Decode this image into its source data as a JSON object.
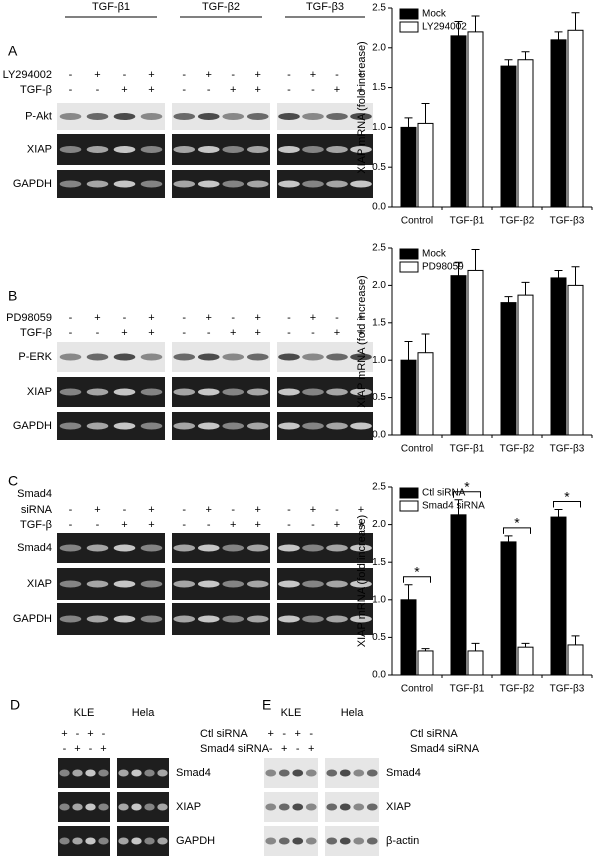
{
  "figure": {
    "header": [
      "TGF-β1",
      "TGF-β2",
      "TGF-β3"
    ],
    "panels": [
      {
        "letter": "A",
        "treatments": [
          {
            "label": [
              "LY294002"
            ],
            "signs": [
              "-",
              "+",
              "-",
              "+",
              "-",
              "+",
              "-",
              "+",
              "-",
              "+",
              "-",
              "+"
            ]
          },
          {
            "label": [
              "TGF-β"
            ],
            "signs": [
              "-",
              "-",
              "+",
              "+",
              "-",
              "-",
              "+",
              "+",
              "-",
              "-",
              "+",
              "+"
            ]
          }
        ],
        "bands": [
          "P-Akt",
          "XIAP",
          "GAPDH"
        ],
        "blot_colors": [
          "#e6e6e6",
          "#1e1e1e",
          "#1e1e1e"
        ]
      },
      {
        "letter": "B",
        "treatments": [
          {
            "label": [
              "PD98059"
            ],
            "signs": [
              "-",
              "+",
              "-",
              "+",
              "-",
              "+",
              "-",
              "+",
              "-",
              "+",
              "-",
              "+"
            ]
          },
          {
            "label": [
              "TGF-β"
            ],
            "signs": [
              "-",
              "-",
              "+",
              "+",
              "-",
              "-",
              "+",
              "+",
              "-",
              "-",
              "+",
              "+"
            ]
          }
        ],
        "bands": [
          "P-ERK",
          "XIAP",
          "GAPDH"
        ],
        "blot_colors": [
          "#e6e6e6",
          "#1e1e1e",
          "#1e1e1e"
        ]
      },
      {
        "letter": "C",
        "treatments": [
          {
            "label": [
              "Smad4",
              "siRNA"
            ],
            "signs": [
              "-",
              "+",
              "-",
              "+",
              "-",
              "+",
              "-",
              "+",
              "-",
              "+",
              "-",
              "+"
            ]
          },
          {
            "label": [
              "TGF-β"
            ],
            "signs": [
              "-",
              "-",
              "+",
              "+",
              "-",
              "-",
              "+",
              "+",
              "-",
              "-",
              "+",
              "+"
            ]
          }
        ],
        "bands": [
          "Smad4",
          "XIAP",
          "GAPDH"
        ],
        "blot_colors": [
          "#1e1e1e",
          "#1e1e1e",
          "#1e1e1e"
        ]
      },
      {
        "letter": "D",
        "groups": [
          "KLE",
          "Hela"
        ],
        "treatments": [
          {
            "label": [
              "Ctl siRNA"
            ],
            "signs": [
              "+",
              "-",
              "+",
              "-"
            ]
          },
          {
            "label": [
              "Smad4 siRNA"
            ],
            "signs": [
              "-",
              "+",
              "-",
              "+"
            ]
          }
        ],
        "bands": [
          "Smad4",
          "XIAP",
          "GAPDH"
        ],
        "blot_colors": [
          "#1e1e1e",
          "#1e1e1e",
          "#1e1e1e"
        ]
      },
      {
        "letter": "E",
        "groups": [
          "KLE",
          "Hela"
        ],
        "treatments": [
          {
            "label": [
              "Ctl siRNA"
            ],
            "signs": [
              "+",
              "-",
              "+",
              "-"
            ]
          },
          {
            "label": [
              "Smad4 siRNA"
            ],
            "signs": [
              "-",
              "+",
              "-",
              "+"
            ]
          }
        ],
        "bands": [
          "Smad4",
          "XIAP",
          "β-actin"
        ],
        "blot_colors": [
          "#e6e6e6",
          "#e6e6e6",
          "#e6e6e6"
        ]
      }
    ]
  },
  "chart_data": [
    {
      "type": "bar",
      "y_label": "XIAP mRNA (fold increase)",
      "categories": [
        "Control",
        "TGF-β1",
        "TGF-β2",
        "TGF-β3"
      ],
      "series": [
        {
          "name": "Mock",
          "color": "#000000",
          "values": [
            1.0,
            2.15,
            1.77,
            2.1
          ],
          "errors": [
            0.12,
            0.18,
            0.08,
            0.1
          ]
        },
        {
          "name": "LY294002",
          "color": "#ffffff",
          "values": [
            1.05,
            2.2,
            1.85,
            2.22
          ],
          "errors": [
            0.25,
            0.2,
            0.1,
            0.22
          ]
        }
      ],
      "ylim": [
        0,
        2.5
      ],
      "yticks": [
        {
          "value": 0,
          "label": "0.0"
        },
        {
          "value": 0.5,
          "label": "0.5"
        },
        {
          "value": 1,
          "label": "1.0"
        },
        {
          "value": 1.5,
          "label": "1.5"
        },
        {
          "value": 2,
          "label": "2.0"
        },
        {
          "value": 2.5,
          "label": "2.5"
        }
      ],
      "legend": "upper left"
    },
    {
      "type": "bar",
      "y_label": "XIAP mRNA (fold increase)",
      "categories": [
        "Control",
        "TGF-β1",
        "TGF-β2",
        "TGF-β3"
      ],
      "series": [
        {
          "name": "Mock",
          "color": "#000000",
          "values": [
            1.0,
            2.13,
            1.77,
            2.1
          ],
          "errors": [
            0.25,
            0.18,
            0.08,
            0.1
          ]
        },
        {
          "name": "PD98059",
          "color": "#ffffff",
          "values": [
            1.1,
            2.2,
            1.87,
            2.0
          ],
          "errors": [
            0.25,
            0.28,
            0.17,
            0.25
          ]
        }
      ],
      "ylim": [
        0,
        2.5
      ],
      "yticks": [
        {
          "value": 0,
          "label": "0.0"
        },
        {
          "value": 0.5,
          "label": "0.5"
        },
        {
          "value": 1,
          "label": "1.0"
        },
        {
          "value": 1.5,
          "label": "1.5"
        },
        {
          "value": 2,
          "label": "2.0"
        },
        {
          "value": 2.5,
          "label": "2.5"
        }
      ],
      "legend": "upper left"
    },
    {
      "type": "bar",
      "y_label": "XIAP mRNA (fold increase)",
      "categories": [
        "Control",
        "TGF-β1",
        "TGF-β2",
        "TGF-β3"
      ],
      "series": [
        {
          "name": "Ctl siRNA",
          "color": "#000000",
          "values": [
            1.0,
            2.13,
            1.77,
            2.1
          ],
          "errors": [
            0.2,
            0.2,
            0.08,
            0.1
          ]
        },
        {
          "name": "Smad4 siRNA",
          "color": "#ffffff",
          "values": [
            0.32,
            0.32,
            0.37,
            0.4
          ],
          "errors": [
            0.03,
            0.1,
            0.05,
            0.12
          ]
        }
      ],
      "annotations": [
        "*",
        "*",
        "*",
        "*"
      ],
      "ylim": [
        0,
        2.5
      ],
      "yticks": [
        {
          "value": 0,
          "label": "0.0"
        },
        {
          "value": 0.5,
          "label": "0.5"
        },
        {
          "value": 1,
          "label": "1.0"
        },
        {
          "value": 1.5,
          "label": "1.5"
        },
        {
          "value": 2,
          "label": "2.0"
        },
        {
          "value": 2.5,
          "label": "2.5"
        }
      ],
      "legend": "upper left"
    }
  ]
}
